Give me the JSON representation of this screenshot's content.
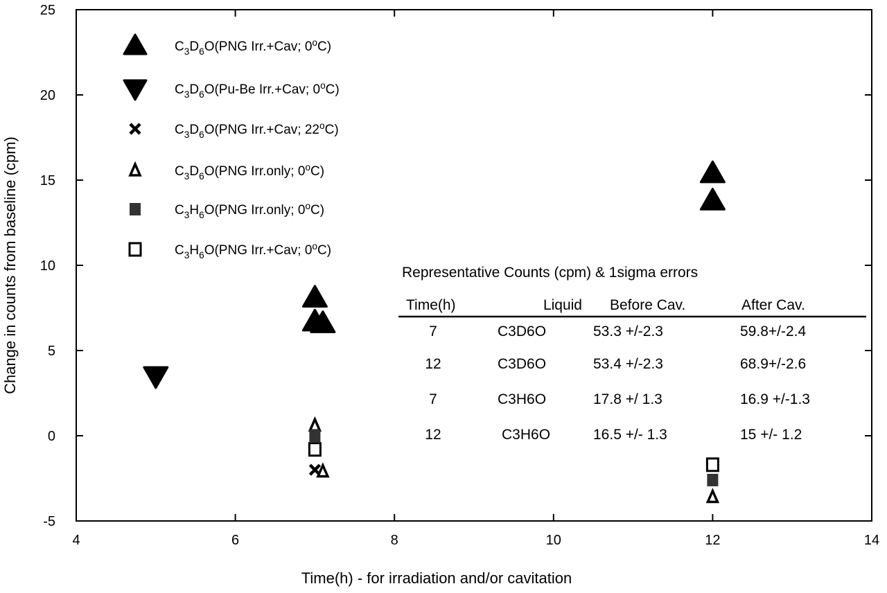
{
  "chart_data": {
    "type": "scatter",
    "xlabel": "Time(h) -  for irradiation and/or cavitation",
    "ylabel": "Change in counts from baseline (cpm)",
    "xlim": [
      4,
      14
    ],
    "ylim": [
      -5,
      25
    ],
    "xticks": [
      4,
      6,
      8,
      10,
      12,
      14
    ],
    "yticks": [
      -5,
      0,
      5,
      10,
      15,
      20,
      25
    ],
    "grid": false,
    "legend_placement": "top-left",
    "series": [
      {
        "name": "C3D6O(PNG Irr.+Cav; 0oC)",
        "marker": "triangle-up-filled",
        "color": "#000000",
        "points": [
          [
            7,
            8.1
          ],
          [
            7,
            6.7
          ],
          [
            7.1,
            6.6
          ],
          [
            12,
            15.4
          ],
          [
            12,
            13.8
          ]
        ]
      },
      {
        "name": "C3D6O(Pu-Be Irr.+Cav; 0oC)",
        "marker": "triangle-down-filled",
        "color": "#000000",
        "points": [
          [
            5,
            3.5
          ]
        ]
      },
      {
        "name": "C3D6O(PNG Irr.+Cav; 22oC)",
        "marker": "x",
        "color": "#000000",
        "points": [
          [
            7,
            -2.0
          ]
        ]
      },
      {
        "name": "C3D6O(PNG Irr.only; 0oC)",
        "marker": "triangle-up-open",
        "color": "#000000",
        "points": [
          [
            7,
            0.6
          ],
          [
            7.1,
            -2.1
          ],
          [
            12,
            -3.6
          ]
        ]
      },
      {
        "name": "C3H6O(PNG Irr.only; 0oC)",
        "marker": "square-filled",
        "color": "#333333",
        "points": [
          [
            7,
            0.0
          ],
          [
            12,
            -2.6
          ]
        ]
      },
      {
        "name": "C3H6O(PNG Irr.+Cav; 0oC)",
        "marker": "square-open",
        "color": "#000000",
        "points": [
          [
            7,
            -0.8
          ],
          [
            12,
            -1.7
          ]
        ]
      }
    ],
    "table": {
      "title": "Representative Counts (cpm) & 1sigma errors",
      "headers": [
        "Time(h)",
        "Liquid",
        "Before Cav.",
        "After Cav."
      ],
      "rows": [
        [
          "7",
          "C3D6O",
          "53.3 +/-2.3",
          "59.8+/-2.4"
        ],
        [
          "12",
          "C3D6O",
          "53.4 +/-2.3",
          "68.9+/-2.6"
        ],
        [
          "7",
          "C3H6O",
          "17.8 +/ 1.3",
          "16.9 +/-1.3"
        ],
        [
          "12",
          "C3H6O",
          "16.5 +/- 1.3",
          "15  +/- 1.2"
        ]
      ]
    }
  }
}
